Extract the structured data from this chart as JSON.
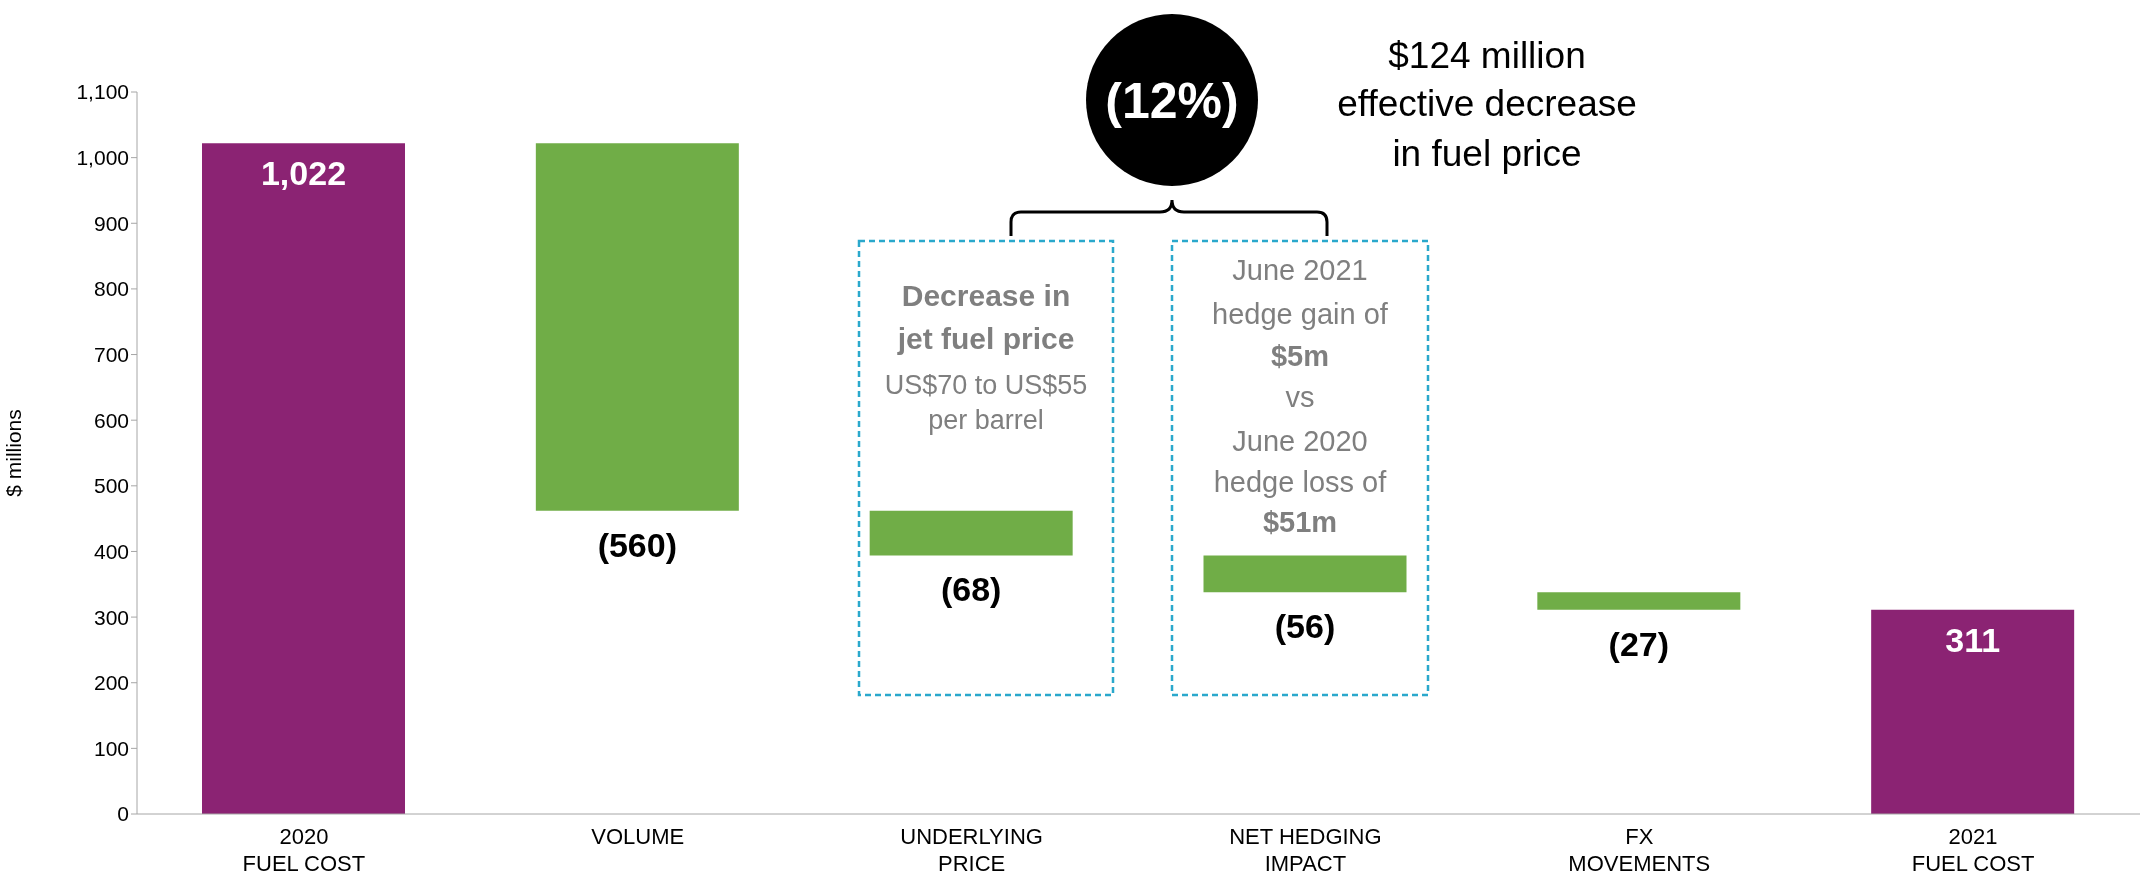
{
  "chart_data": {
    "type": "bar",
    "ylabel": "$ millions",
    "categories": [
      "2020\nFUEL COST",
      "VOLUME",
      "UNDERLYING\nPRICE",
      "NET HEDGING\nIMPACT",
      "FX\nMOVEMENTS",
      "2021\nFUEL COST"
    ],
    "values": [
      1022,
      -560,
      -68,
      -56,
      -27,
      311
    ],
    "base": [
      0,
      1022,
      462,
      394,
      338,
      0
    ],
    "colors": [
      "#8b2373",
      "#70ad47",
      "#70ad47",
      "#70ad47",
      "#70ad47",
      "#8b2373"
    ],
    "value_labels": [
      "1,022",
      "(560)",
      "(68)",
      "(56)",
      "(27)",
      "311"
    ],
    "ylim": [
      0,
      1100
    ],
    "yticks": [
      0,
      100,
      200,
      300,
      400,
      500,
      600,
      700,
      800,
      900,
      {
        "value": 1000,
        "label": "1,000"
      },
      {
        "value": 1100,
        "label": "1,100"
      }
    ],
    "annotations": [
      "(12%)",
      "$124 million",
      "effective decrease",
      "in fuel price",
      "Decrease in",
      "jet fuel price",
      "US$70 to US$55",
      "per barrel",
      "June 2021",
      "hedge gain of",
      "$5m",
      "vs",
      "June 2020",
      "hedge loss of",
      "$51m"
    ]
  }
}
